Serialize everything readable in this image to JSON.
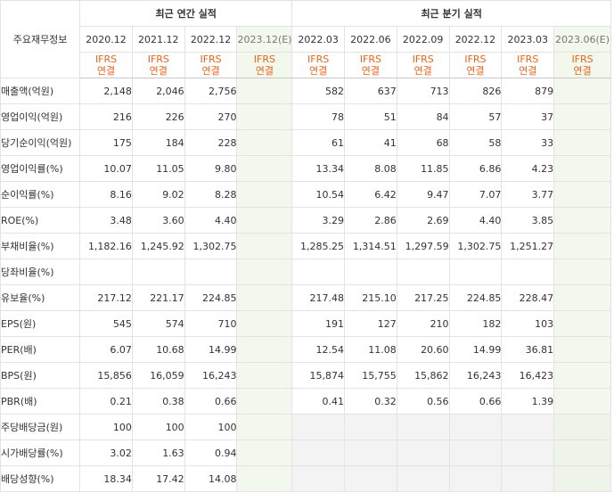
{
  "header": {
    "label_col": "주요재무정보",
    "annual_title": "최근 연간 실적",
    "quarterly_title": "최근 분기 실적",
    "annual_periods": [
      "2020.12",
      "2021.12",
      "2022.12",
      "2023.12(E)"
    ],
    "quarterly_periods": [
      "2022.03",
      "2022.06",
      "2022.09",
      "2022.12",
      "2023.03",
      "2023.06(E)"
    ],
    "ifrs_top": "IFRS",
    "ifrs_bottom": "연결"
  },
  "rows": [
    {
      "label": "매출액(억원)",
      "annual": [
        "2,148",
        "2,046",
        "2,756",
        ""
      ],
      "quarterly": [
        "582",
        "637",
        "713",
        "826",
        "879",
        ""
      ]
    },
    {
      "label": "영업이익(억원)",
      "annual": [
        "216",
        "226",
        "270",
        ""
      ],
      "quarterly": [
        "78",
        "51",
        "84",
        "57",
        "37",
        ""
      ]
    },
    {
      "label": "당기순이익(억원)",
      "annual": [
        "175",
        "184",
        "228",
        ""
      ],
      "quarterly": [
        "61",
        "41",
        "68",
        "58",
        "33",
        ""
      ]
    },
    {
      "label": "영업이익률(%)",
      "annual": [
        "10.07",
        "11.05",
        "9.80",
        ""
      ],
      "quarterly": [
        "13.34",
        "8.08",
        "11.85",
        "6.86",
        "4.23",
        ""
      ]
    },
    {
      "label": "순이익률(%)",
      "annual": [
        "8.16",
        "9.02",
        "8.28",
        ""
      ],
      "quarterly": [
        "10.54",
        "6.42",
        "9.47",
        "7.07",
        "3.77",
        ""
      ]
    },
    {
      "label": "ROE(%)",
      "annual": [
        "3.48",
        "3.60",
        "4.40",
        ""
      ],
      "quarterly": [
        "3.29",
        "2.86",
        "2.69",
        "4.40",
        "3.85",
        ""
      ]
    },
    {
      "label": "부채비율(%)",
      "annual": [
        "1,182.16",
        "1,245.92",
        "1,302.75",
        ""
      ],
      "quarterly": [
        "1,285.25",
        "1,314.51",
        "1,297.59",
        "1,302.75",
        "1,251.27",
        ""
      ]
    },
    {
      "label": "당좌비율(%)",
      "annual": [
        "",
        "",
        "",
        ""
      ],
      "quarterly": [
        "",
        "",
        "",
        "",
        "",
        ""
      ]
    },
    {
      "label": "유보율(%)",
      "annual": [
        "217.12",
        "221.17",
        "224.85",
        ""
      ],
      "quarterly": [
        "217.48",
        "215.10",
        "217.25",
        "224.85",
        "228.47",
        ""
      ]
    },
    {
      "label": "EPS(원)",
      "annual": [
        "545",
        "574",
        "710",
        ""
      ],
      "quarterly": [
        "191",
        "127",
        "210",
        "182",
        "103",
        ""
      ]
    },
    {
      "label": "PER(배)",
      "annual": [
        "6.07",
        "10.68",
        "14.99",
        ""
      ],
      "quarterly": [
        "12.54",
        "11.08",
        "20.60",
        "14.99",
        "36.81",
        ""
      ]
    },
    {
      "label": "BPS(원)",
      "annual": [
        "15,856",
        "16,059",
        "16,243",
        ""
      ],
      "quarterly": [
        "15,874",
        "15,755",
        "15,862",
        "16,243",
        "16,423",
        ""
      ]
    },
    {
      "label": "PBR(배)",
      "annual": [
        "0.21",
        "0.38",
        "0.66",
        ""
      ],
      "quarterly": [
        "0.41",
        "0.32",
        "0.56",
        "0.66",
        "1.39",
        ""
      ]
    },
    {
      "label": "주당배당금(원)",
      "annual": [
        "100",
        "100",
        "100",
        ""
      ],
      "quarterly": [
        "",
        "",
        "",
        "",
        "",
        ""
      ]
    },
    {
      "label": "시가배당률(%)",
      "annual": [
        "3.02",
        "1.63",
        "0.94",
        ""
      ],
      "quarterly": [
        "",
        "",
        "",
        "",
        "",
        ""
      ]
    },
    {
      "label": "배당성향(%)",
      "annual": [
        "18.34",
        "17.42",
        "14.08",
        ""
      ],
      "quarterly": [
        "",
        "",
        "",
        "",
        "",
        ""
      ]
    }
  ]
}
